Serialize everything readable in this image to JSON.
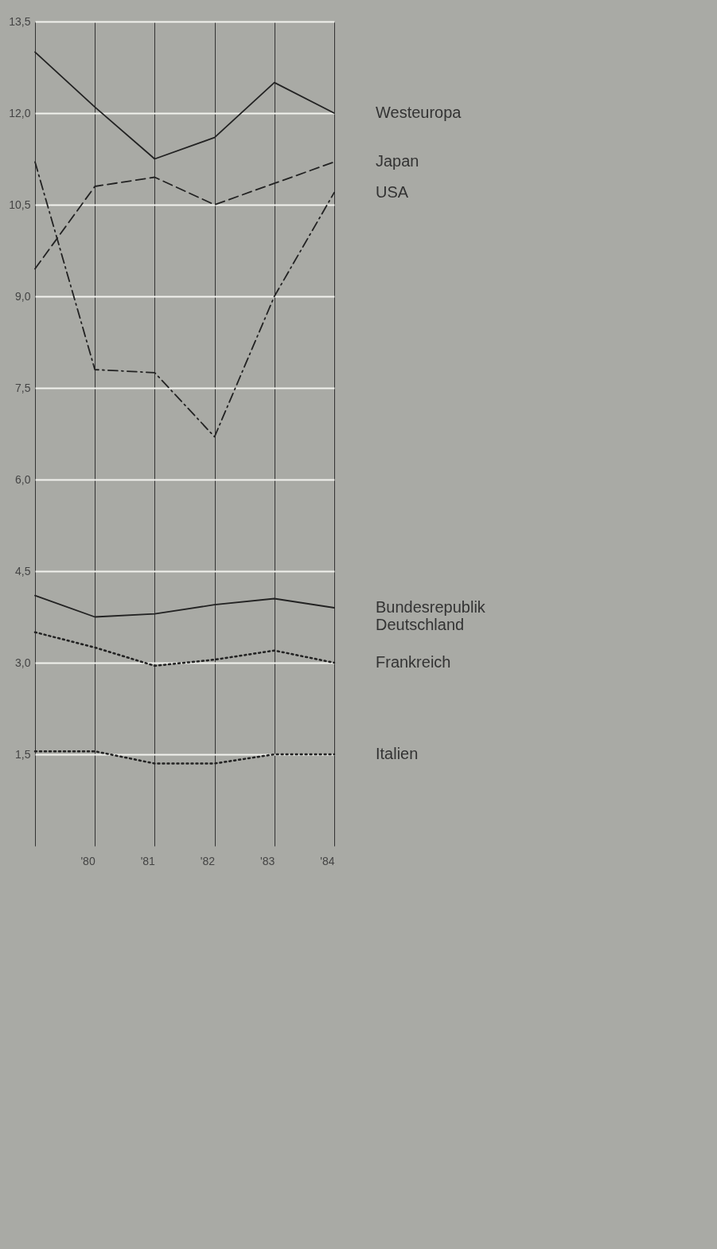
{
  "chart_data": {
    "type": "line",
    "categories": [
      null,
      "'80",
      "'81",
      "'82",
      "'83",
      "'84"
    ],
    "series": [
      {
        "name": "Westeuropa",
        "color": "#222222",
        "line_style": "solid",
        "values": [
          13.0,
          12.1,
          11.25,
          11.6,
          12.5,
          12.0
        ]
      },
      {
        "name": "Japan",
        "color": "#222222",
        "line_style": "dashed",
        "values": [
          9.45,
          10.8,
          10.95,
          10.5,
          10.85,
          11.2
        ]
      },
      {
        "name": "USA",
        "color": "#222222",
        "line_style": "dashdot",
        "values": [
          11.2,
          7.8,
          7.75,
          6.7,
          9.0,
          10.7
        ]
      },
      {
        "name": "Bundesrepublik Deutschland",
        "color": "#222222",
        "line_style": "solid",
        "values": [
          4.1,
          3.75,
          3.8,
          3.95,
          4.05,
          3.9
        ]
      },
      {
        "name": "Frankreich",
        "color": "#222222",
        "line_style": "dotted",
        "values": [
          3.5,
          3.25,
          2.95,
          3.05,
          3.2,
          3.0
        ]
      },
      {
        "name": "Italien",
        "color": "#222222",
        "line_style": "dotted",
        "values": [
          1.55,
          1.55,
          1.35,
          1.35,
          1.5,
          1.5
        ]
      }
    ],
    "ylim": [
      0,
      13.5
    ],
    "yticks": [
      {
        "value": 1.5,
        "label": "1,5"
      },
      {
        "value": 3.0,
        "label": "3,0"
      },
      {
        "value": 4.5,
        "label": "4,5"
      },
      {
        "value": 6.0,
        "label": "6,0"
      },
      {
        "value": 7.5,
        "label": "7,5"
      },
      {
        "value": 9.0,
        "label": "9,0"
      },
      {
        "value": 10.5,
        "label": "10,5"
      },
      {
        "value": 12.0,
        "label": "12,0"
      },
      {
        "value": 13.5,
        "label": "13,5"
      }
    ],
    "grid": true,
    "legend": false
  }
}
